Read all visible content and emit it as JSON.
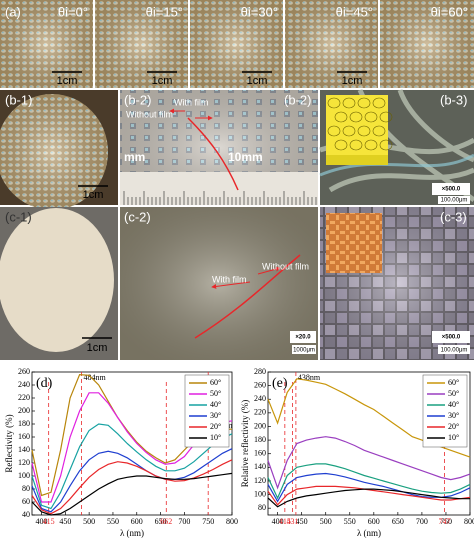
{
  "panels": {
    "a": {
      "label": "(a)",
      "angles": [
        "θi=0°",
        "θi=15°",
        "θi=30°",
        "θi=45°",
        "θi=60°"
      ],
      "scale_bar": "1cm"
    },
    "b1": {
      "label": "(b-1)",
      "scale_bar": "1cm"
    },
    "b2": {
      "label": "(b-2)",
      "with_film": "With film",
      "without_film": "Without film",
      "unit_left": "mm",
      "unit_right": "10mm"
    },
    "b3": {
      "label": "(b-3)",
      "magnification": "×500.0",
      "scale_bar": "100.00μm"
    },
    "c1": {
      "label": "(c-1)",
      "scale_bar": "1cm"
    },
    "c2": {
      "label": "(c-2)",
      "with_film": "With film",
      "without_film": "Without film",
      "magnification": "×20.0",
      "scale_bar": "1000μm"
    },
    "c3": {
      "label": "(c-3)",
      "magnification": "×500.0",
      "scale_bar": "100.00μm"
    }
  },
  "chart_data": [
    {
      "type": "line",
      "title": "(d)",
      "x_label": "λ (nm)",
      "y_label": "Reflectivity (%)",
      "x": [
        380,
        400,
        420,
        440,
        460,
        480,
        500,
        520,
        540,
        560,
        580,
        600,
        620,
        640,
        660,
        680,
        700,
        720,
        740,
        760,
        780,
        800
      ],
      "xlim": [
        380,
        800
      ],
      "xticks": [
        400,
        450,
        500,
        550,
        600,
        650,
        700,
        750,
        800
      ],
      "ylim": [
        40,
        260
      ],
      "yticks": [
        40,
        60,
        80,
        100,
        120,
        140,
        160,
        180,
        200,
        220,
        240,
        260
      ],
      "legend": "upper right",
      "reference_lines": [
        {
          "value": 484,
          "label": "484nm"
        },
        {
          "value": 750,
          "label": "750nm"
        }
      ],
      "reference_ticks": [
        415,
        662
      ],
      "reference_color": "#e8272a",
      "series": [
        {
          "name": "60°",
          "color": "#b8860b",
          "values": [
            140,
            70,
            75,
            140,
            220,
            256,
            255,
            240,
            215,
            190,
            170,
            152,
            138,
            128,
            120,
            125,
            140,
            155,
            165,
            170,
            172,
            172
          ]
        },
        {
          "name": "50°",
          "color": "#e020e0",
          "values": [
            120,
            60,
            60,
            100,
            160,
            200,
            228,
            228,
            212,
            190,
            168,
            150,
            136,
            125,
            118,
            120,
            130,
            148,
            165,
            175,
            182,
            185
          ]
        },
        {
          "name": "40°",
          "color": "#17a2a2",
          "values": [
            100,
            55,
            50,
            75,
            110,
            145,
            170,
            180,
            178,
            165,
            150,
            137,
            125,
            115,
            108,
            108,
            112,
            122,
            135,
            148,
            158,
            165
          ]
        },
        {
          "name": "30°",
          "color": "#1f3fd0",
          "values": [
            85,
            50,
            45,
            60,
            85,
            108,
            125,
            135,
            138,
            135,
            128,
            118,
            108,
            100,
            95,
            95,
            98,
            105,
            115,
            125,
            135,
            142
          ]
        },
        {
          "name": "20°",
          "color": "#e8272a",
          "values": [
            70,
            48,
            42,
            50,
            65,
            82,
            98,
            110,
            118,
            122,
            120,
            115,
            108,
            100,
            95,
            92,
            93,
            97,
            103,
            110,
            118,
            125
          ]
        },
        {
          "name": "10°",
          "color": "#000000",
          "values": [
            60,
            45,
            40,
            42,
            50,
            60,
            70,
            80,
            88,
            95,
            98,
            100,
            100,
            98,
            96,
            95,
            95,
            96,
            98,
            100,
            102,
            104
          ]
        }
      ]
    },
    {
      "type": "line",
      "title": "(e)",
      "x_label": "λ (nm)",
      "y_label": "Relative reflectivity (%)",
      "x": [
        380,
        400,
        420,
        440,
        460,
        480,
        500,
        520,
        540,
        560,
        580,
        600,
        620,
        640,
        660,
        680,
        700,
        720,
        740,
        760,
        780,
        800
      ],
      "xlim": [
        380,
        800
      ],
      "xticks": [
        400,
        450,
        500,
        550,
        600,
        650,
        700,
        750,
        800
      ],
      "ylim": [
        70,
        280
      ],
      "yticks": [
        80,
        100,
        120,
        140,
        160,
        180,
        200,
        220,
        240,
        260,
        280
      ],
      "legend": "upper right",
      "reference_lines": [
        {
          "value": 438,
          "label": "438nm"
        }
      ],
      "reference_ticks": [
        415,
        431,
        747
      ],
      "reference_color": "#e8272a",
      "series": [
        {
          "name": "60°",
          "color": "#c8960a",
          "values": [
            240,
            205,
            250,
            270,
            268,
            265,
            262,
            255,
            248,
            240,
            232,
            225,
            215,
            205,
            195,
            185,
            180,
            175,
            170,
            165,
            160,
            155
          ]
        },
        {
          "name": "50°",
          "color": "#9a3fc0",
          "values": [
            150,
            110,
            150,
            175,
            180,
            183,
            185,
            183,
            178,
            172,
            165,
            160,
            155,
            150,
            145,
            140,
            135,
            130,
            125,
            122,
            125,
            130
          ]
        },
        {
          "name": "40°",
          "color": "#1aa080",
          "values": [
            125,
            95,
            128,
            140,
            143,
            145,
            145,
            142,
            138,
            133,
            128,
            124,
            120,
            116,
            112,
            108,
            105,
            103,
            102,
            103,
            108,
            115
          ]
        },
        {
          "name": "30°",
          "color": "#1f3fd0",
          "values": [
            115,
            90,
            115,
            125,
            128,
            130,
            131,
            129,
            126,
            122,
            118,
            115,
            112,
            108,
            104,
            100,
            97,
            96,
            96,
            98,
            103,
            110
          ]
        },
        {
          "name": "20°",
          "color": "#e8272a",
          "values": [
            105,
            85,
            100,
            108,
            110,
            112,
            112,
            112,
            111,
            110,
            108,
            106,
            104,
            102,
            100,
            98,
            96,
            94,
            92,
            92,
            94,
            96
          ]
        },
        {
          "name": "10°",
          "color": "#000000",
          "values": [
            95,
            82,
            90,
            95,
            98,
            100,
            102,
            104,
            106,
            107,
            108,
            108,
            107,
            106,
            104,
            102,
            100,
            98,
            96,
            95,
            94,
            94
          ]
        }
      ]
    }
  ]
}
